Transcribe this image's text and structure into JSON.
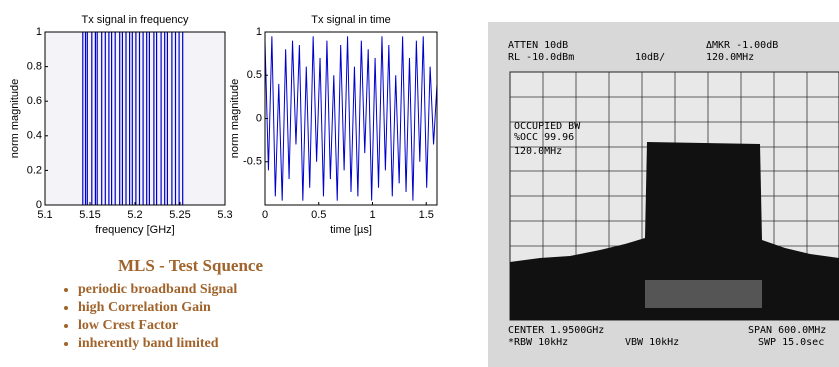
{
  "charts": [
    {
      "type": "stem",
      "title": "Tx signal in frequency",
      "xlabel": "frequency [GHz]",
      "ylabel": "norm magnitude",
      "xlim": [
        5.1,
        5.3
      ],
      "xticks": [
        5.1,
        5.15,
        5.2,
        5.25,
        5.3
      ],
      "ylim": [
        0,
        1
      ],
      "yticks": [
        0,
        0.2,
        0.4,
        0.6,
        0.8,
        1
      ],
      "color": "#0000cc",
      "x": [
        5.142,
        5.145,
        5.147,
        5.152,
        5.156,
        5.158,
        5.163,
        5.167,
        5.171,
        5.174,
        5.178,
        5.183,
        5.186,
        5.19,
        5.194,
        5.197,
        5.201,
        5.205,
        5.209,
        5.213,
        5.216,
        5.221,
        5.224,
        5.229,
        5.233,
        5.236,
        5.241,
        5.245,
        5.249,
        5.253
      ],
      "values": [
        1,
        1,
        1,
        1,
        1,
        1,
        1,
        1,
        1,
        1,
        1,
        1,
        1,
        1,
        1,
        1,
        1,
        1,
        1,
        1,
        1,
        1,
        1,
        1,
        1,
        1,
        1,
        1,
        1,
        1
      ]
    },
    {
      "type": "line",
      "title": "Tx signal in time",
      "xlabel": "time [µs]",
      "ylabel": "norm magnitude",
      "xlim": [
        0,
        1.6
      ],
      "xticks": [
        0,
        0.5,
        1,
        1.5
      ],
      "ylim": [
        -1,
        1
      ],
      "yticks": [
        -0.5,
        0,
        0.5,
        1
      ],
      "color": "#0000cc",
      "x": [
        0,
        0.032,
        0.064,
        0.096,
        0.128,
        0.16,
        0.192,
        0.224,
        0.256,
        0.288,
        0.32,
        0.352,
        0.384,
        0.416,
        0.448,
        0.48,
        0.512,
        0.544,
        0.576,
        0.608,
        0.64,
        0.672,
        0.704,
        0.736,
        0.768,
        0.8,
        0.832,
        0.864,
        0.896,
        0.928,
        0.96,
        0.992,
        1.024,
        1.056,
        1.088,
        1.12,
        1.152,
        1.184,
        1.216,
        1.248,
        1.28,
        1.312,
        1.344,
        1.376,
        1.408,
        1.44,
        1.472,
        1.504,
        1.536,
        1.568,
        1.6
      ],
      "values": [
        0.9,
        -0.6,
        0.95,
        -0.9,
        0.4,
        -0.95,
        0.8,
        -0.7,
        0.9,
        -0.3,
        0.85,
        -0.95,
        0.6,
        -0.8,
        0.95,
        -0.5,
        0.7,
        -0.9,
        0.9,
        -0.7,
        0.5,
        -0.95,
        0.85,
        -0.6,
        0.95,
        -0.85,
        0.6,
        -0.9,
        0.9,
        -0.4,
        0.8,
        -0.95,
        0.7,
        -0.8,
        0.95,
        -0.6,
        0.85,
        -0.9,
        0.5,
        -0.75,
        0.95,
        -0.85,
        0.7,
        -0.95,
        0.9,
        -0.5,
        0.95,
        -0.8,
        0.6,
        -0.3,
        0.4
      ]
    }
  ],
  "slide": {
    "heading": "MLS - Test Squence",
    "bullets": [
      "periodic broadband Signal",
      "high Correlation Gain",
      "low Crest Factor",
      "inherently band limited"
    ]
  },
  "analyzer": {
    "atten": "ATTEN 10dB",
    "rl": "RL -10.0dBm",
    "scale": "10dB/",
    "marker": "ΔMKR -1.00dB",
    "marker_freq": "120.0MHz",
    "occupied_bw": "OCCUPIED BW",
    "occ": "%OCC 99.96",
    "occ_bw": "120.0MHz",
    "center": "CENTER 1.9500GHz",
    "rbw": "*RBW 10kHz",
    "vbw": "VBW 10kHz",
    "span": "SPAN 600.0MHz",
    "swp": "SWP 15.0sec"
  }
}
